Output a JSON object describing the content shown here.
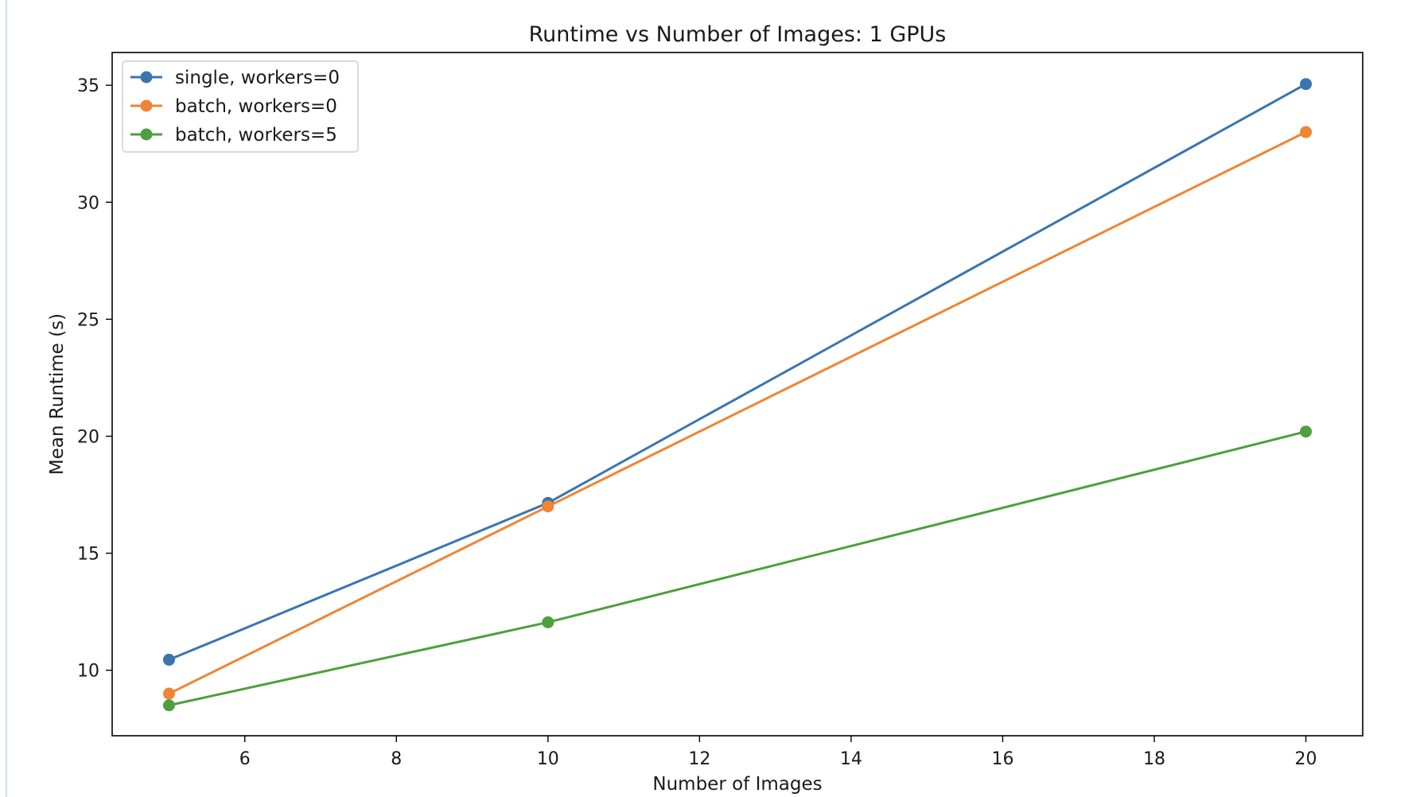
{
  "chart_data": {
    "type": "line",
    "title": "Runtime vs Number of Images: 1 GPUs",
    "xlabel": "Number of Images",
    "ylabel": "Mean Runtime (s)",
    "x": [
      5,
      10,
      20
    ],
    "xlim": [
      4.25,
      20.75
    ],
    "ylim": [
      7.2,
      36.4
    ],
    "xticks": [
      6,
      8,
      10,
      12,
      14,
      16,
      18,
      20
    ],
    "yticks": [
      10,
      15,
      20,
      25,
      30,
      35
    ],
    "grid": false,
    "legend_position": "top-left",
    "series": [
      {
        "name": "single, workers=0",
        "color": "#3a75b0",
        "values": [
          10.45,
          17.15,
          35.05
        ]
      },
      {
        "name": "batch, workers=0",
        "color": "#ef8535",
        "values": [
          9.0,
          17.0,
          33.0
        ]
      },
      {
        "name": "batch, workers=5",
        "color": "#4f9e3f",
        "values": [
          8.5,
          12.05,
          20.2
        ]
      }
    ]
  }
}
